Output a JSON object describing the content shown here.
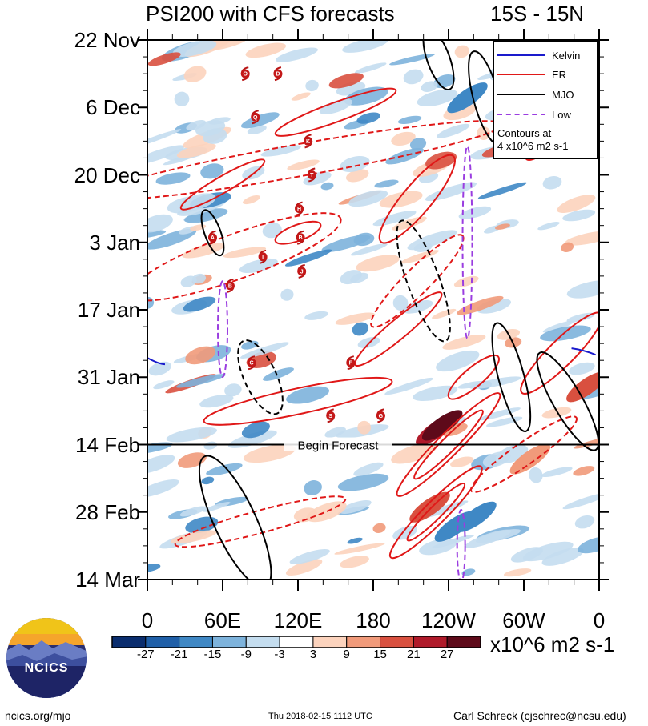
{
  "header": {
    "title": "PSI200 with CFS forecasts",
    "region": "15S - 15N"
  },
  "chart_data": {
    "type": "heatmap",
    "title": "PSI200 with CFS forecasts",
    "region": "15S - 15N",
    "x_ticks": [
      "0",
      "60E",
      "120E",
      "180",
      "120W",
      "60W",
      "0"
    ],
    "x_tick_degrees": [
      0,
      60,
      120,
      180,
      240,
      300,
      360
    ],
    "y_ticks": [
      "22 Nov",
      "6 Dec",
      "20 Dec",
      "3 Jan",
      "17 Jan",
      "31 Jan",
      "14 Feb",
      "28 Feb",
      "14 Mar"
    ],
    "y_tick_days": [
      0,
      14,
      28,
      42,
      56,
      70,
      84,
      98,
      112
    ],
    "xlim": [
      0,
      360
    ],
    "ylim_days": [
      0,
      112
    ],
    "begin_forecast": {
      "label": "Begin Forecast",
      "day": 84
    },
    "legend": {
      "entries": [
        {
          "name": "Kelvin",
          "color": "#1a1acc"
        },
        {
          "name": "ER",
          "color": "#e01818"
        },
        {
          "name": "MJO",
          "color": "#000000"
        },
        {
          "name": "Low",
          "color": "#9a3de0"
        }
      ],
      "note_line1": "Contours at",
      "note_line2": "4 x10^6 m2 s-1",
      "position": "top-right"
    },
    "colorbar": {
      "levels": [
        -27,
        -21,
        -15,
        -9,
        -3,
        3,
        9,
        15,
        21,
        27
      ],
      "labels": [
        "-27",
        "-21",
        "-15",
        "-9",
        "-3",
        "3",
        "9",
        "15",
        "21",
        "27"
      ],
      "colors": [
        "#0a2d6e",
        "#1f5fa8",
        "#3f88c5",
        "#7db3dc",
        "#c4ddef",
        "#ffffff",
        "#fcd3bd",
        "#f19a7a",
        "#d9503f",
        "#b01a2a",
        "#5e0a1a"
      ],
      "units": "x10^6 m2 s-1"
    },
    "storms": [
      {
        "label": "O",
        "lon": 78,
        "day": 7
      },
      {
        "label": "D",
        "lon": 104,
        "day": 7
      },
      {
        "label": "Q",
        "lon": 86,
        "day": 16
      },
      {
        "label": "K",
        "lon": 128,
        "day": 21
      },
      {
        "label": "T",
        "lon": 131,
        "day": 28
      },
      {
        "label": "H",
        "lon": 121,
        "day": 35
      },
      {
        "label": "B",
        "lon": 122,
        "day": 41
      },
      {
        "label": "A",
        "lon": 52,
        "day": 41
      },
      {
        "label": "I",
        "lon": 92,
        "day": 45
      },
      {
        "label": "J",
        "lon": 123,
        "day": 48
      },
      {
        "label": "B",
        "lon": 66,
        "day": 51
      },
      {
        "label": "C",
        "lon": 83,
        "day": 67
      },
      {
        "label": "F",
        "lon": 162,
        "day": 67
      },
      {
        "label": "S",
        "lon": 146,
        "day": 78
      },
      {
        "label": "G",
        "lon": 186,
        "day": 78
      }
    ]
  },
  "footer": {
    "logo_text": "NCICS",
    "url": "ncics.org/mjo",
    "timestamp": "Thu 2018-02-15 1112 UTC",
    "author": "Carl Schreck (cjschrec@ncsu.edu)"
  }
}
